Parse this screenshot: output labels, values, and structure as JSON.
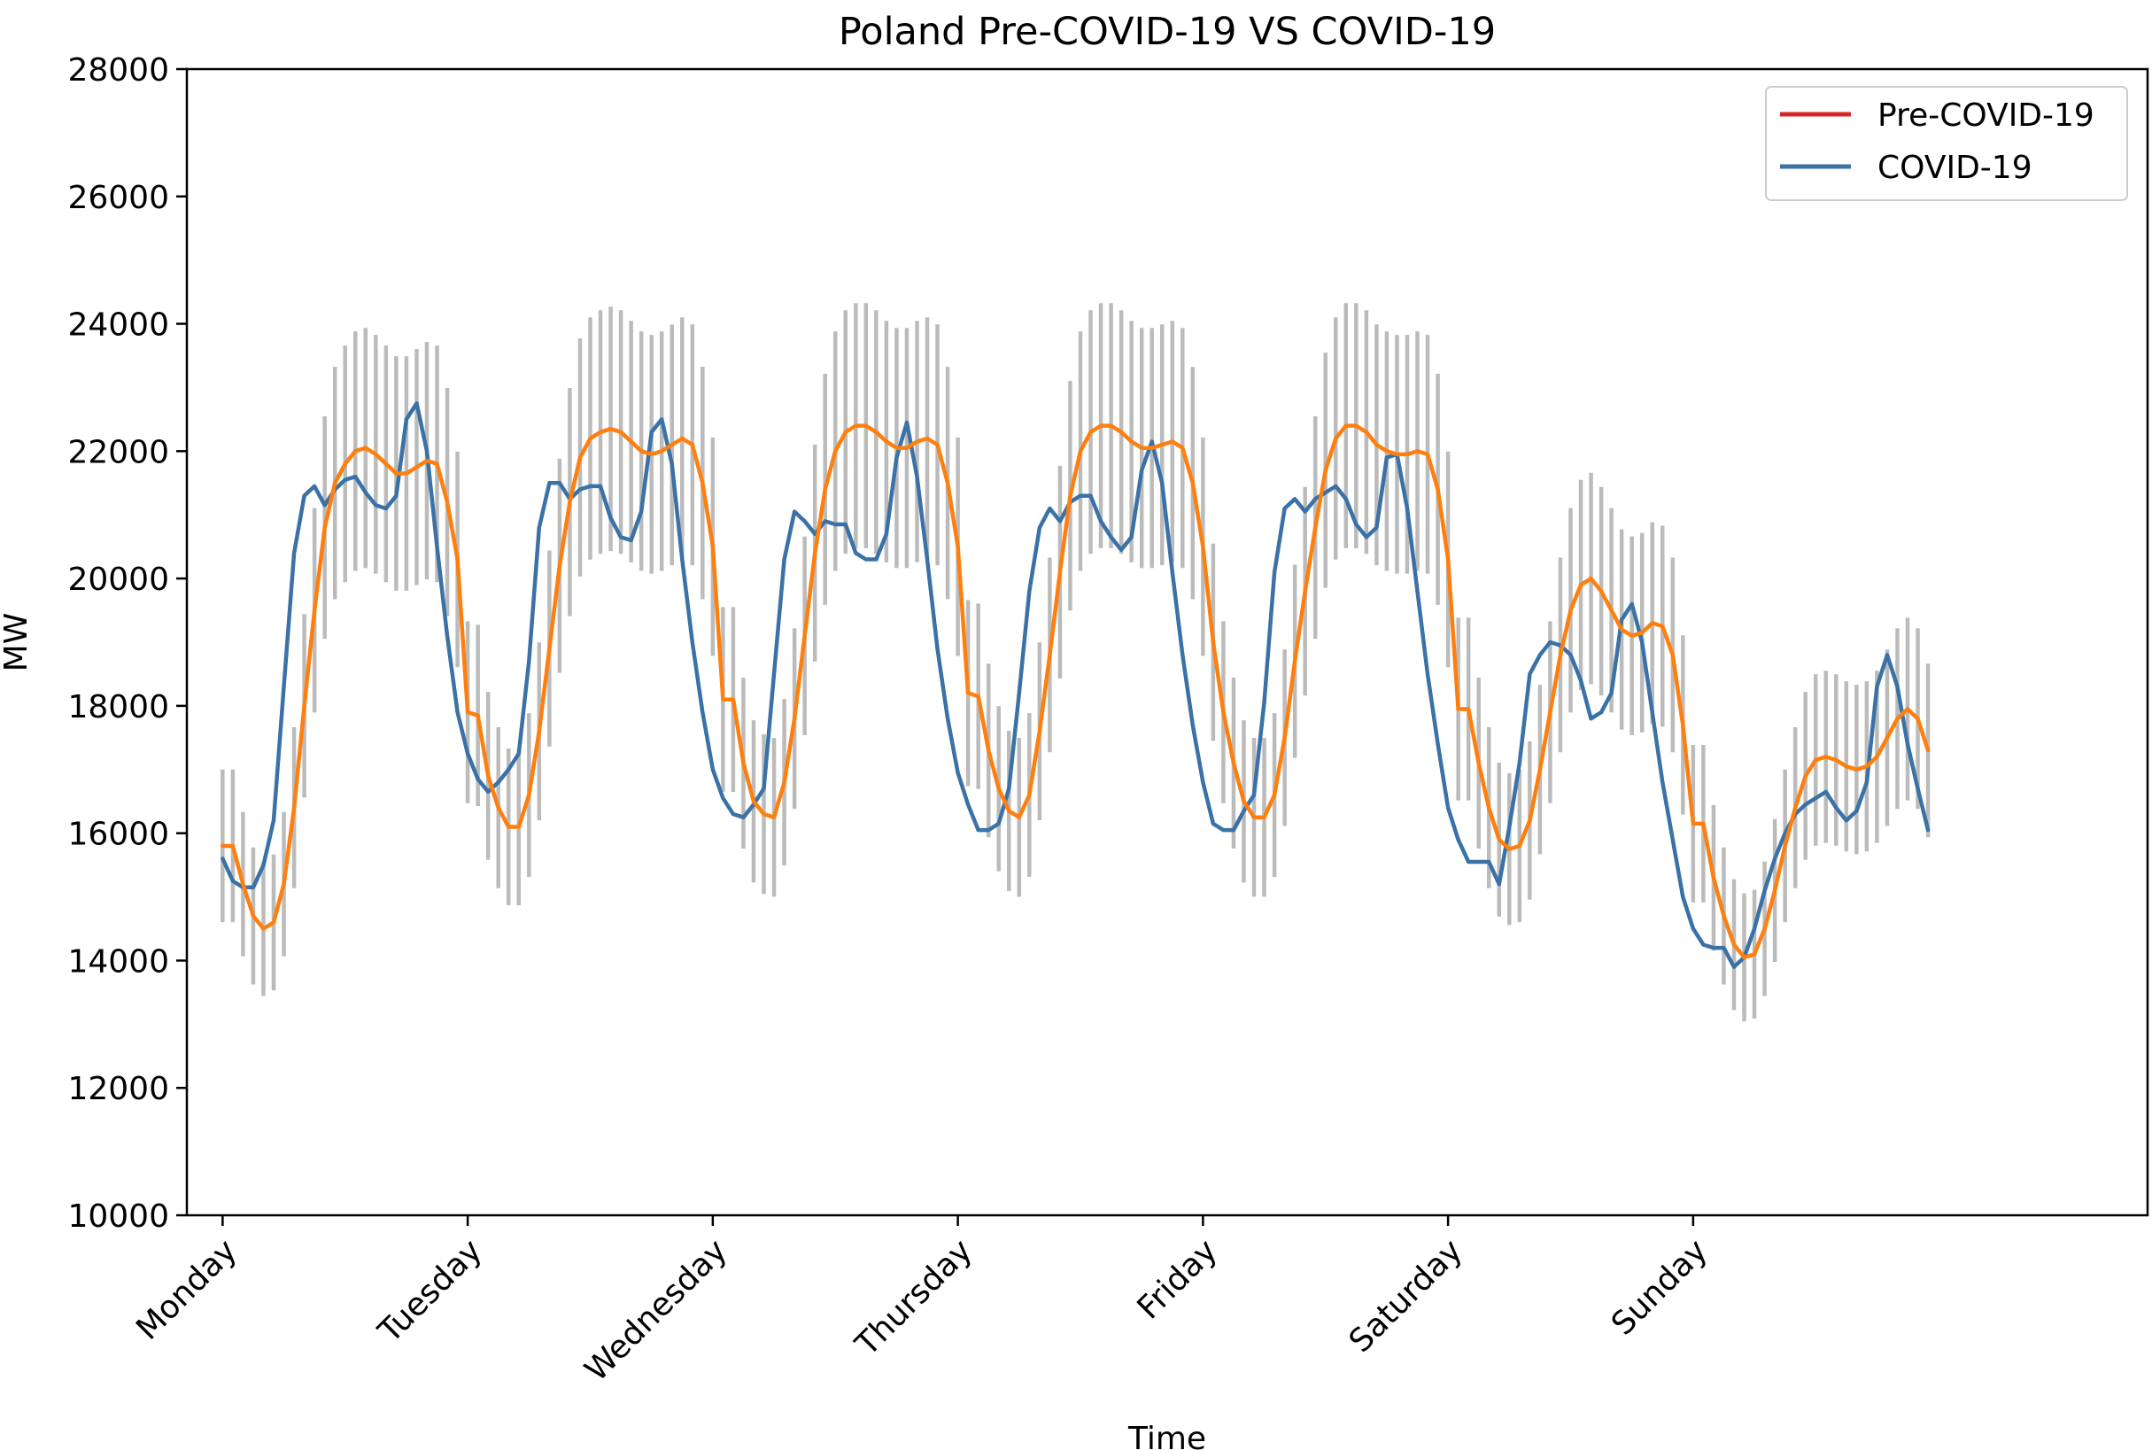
{
  "chart_data": {
    "type": "line",
    "title": "Poland Pre-COVID-19 VS COVID-19",
    "xlabel": "Time",
    "ylabel": "MW",
    "ylim": [
      10000,
      28000
    ],
    "yticks": [
      10000,
      12000,
      14000,
      16000,
      18000,
      20000,
      22000,
      24000,
      26000,
      28000
    ],
    "x_unit": "hours since Monday 00:00",
    "xlim": [
      -3.5,
      188.5
    ],
    "xticks": [
      {
        "label": "Monday",
        "x": 0
      },
      {
        "label": "Tuesday",
        "x": 24
      },
      {
        "label": "Wednesday",
        "x": 48
      },
      {
        "label": "Thursday",
        "x": 72
      },
      {
        "label": "Friday",
        "x": 96
      },
      {
        "label": "Saturday",
        "x": 120
      },
      {
        "label": "Sunday",
        "x": 144
      }
    ],
    "legend_position": "top-right",
    "series": [
      {
        "name": "Pre-COVID-19",
        "legend_color": "#d62728",
        "line_color": "#ff7f0e",
        "x": [
          0,
          1,
          2,
          3,
          4,
          5,
          6,
          7,
          8,
          9,
          10,
          11,
          12,
          13,
          14,
          15,
          16,
          17,
          18,
          19,
          20,
          21,
          22,
          23,
          24,
          25,
          26,
          27,
          28,
          29,
          30,
          31,
          32,
          33,
          34,
          35,
          36,
          37,
          38,
          39,
          40,
          41,
          42,
          43,
          44,
          45,
          46,
          47,
          48,
          49,
          50,
          51,
          52,
          53,
          54,
          55,
          56,
          57,
          58,
          59,
          60,
          61,
          62,
          63,
          64,
          65,
          66,
          67,
          68,
          69,
          70,
          71,
          72,
          73,
          74,
          75,
          76,
          77,
          78,
          79,
          80,
          81,
          82,
          83,
          84,
          85,
          86,
          87,
          88,
          89,
          90,
          91,
          92,
          93,
          94,
          95,
          96,
          97,
          98,
          99,
          100,
          101,
          102,
          103,
          104,
          105,
          106,
          107,
          108,
          109,
          110,
          111,
          112,
          113,
          114,
          115,
          116,
          117,
          118,
          119,
          120,
          121,
          122,
          123,
          124,
          125,
          126,
          127,
          128,
          129,
          130,
          131,
          132,
          133,
          134,
          135,
          136,
          137,
          138,
          139,
          140,
          141,
          142,
          143,
          144,
          145,
          146,
          147,
          148,
          149,
          150,
          151,
          152,
          153,
          154,
          155,
          156,
          157,
          158,
          159,
          160,
          161,
          162,
          163,
          164,
          165,
          166,
          167
        ],
        "values": [
          15800,
          15800,
          15200,
          14700,
          14500,
          14600,
          15200,
          16400,
          18000,
          19500,
          20800,
          21500,
          21800,
          22000,
          22050,
          21950,
          21800,
          21650,
          21650,
          21750,
          21850,
          21800,
          21200,
          20300,
          17900,
          17850,
          16900,
          16400,
          16100,
          16100,
          16600,
          17600,
          18900,
          20200,
          21200,
          21900,
          22200,
          22300,
          22350,
          22300,
          22150,
          22000,
          21950,
          22000,
          22100,
          22200,
          22100,
          21500,
          20500,
          18100,
          18100,
          17100,
          16500,
          16300,
          16250,
          16800,
          17800,
          19100,
          20400,
          21400,
          22000,
          22300,
          22400,
          22400,
          22300,
          22150,
          22050,
          22050,
          22150,
          22200,
          22100,
          21500,
          20500,
          18200,
          18150,
          17300,
          16700,
          16350,
          16250,
          16600,
          17600,
          18800,
          20100,
          21300,
          22000,
          22300,
          22400,
          22400,
          22300,
          22150,
          22050,
          22050,
          22100,
          22150,
          22050,
          21500,
          20500,
          19000,
          17900,
          17100,
          16500,
          16250,
          16250,
          16600,
          17500,
          18700,
          19800,
          20800,
          21700,
          22200,
          22400,
          22400,
          22300,
          22100,
          22000,
          21950,
          21950,
          22000,
          21950,
          21400,
          20300,
          17950,
          17950,
          17100,
          16400,
          15900,
          15750,
          15800,
          16200,
          17000,
          17900,
          18800,
          19500,
          19900,
          20000,
          19800,
          19500,
          19200,
          19100,
          19150,
          19300,
          19250,
          18800,
          17700,
          16150,
          16150,
          15300,
          14700,
          14250,
          14050,
          14100,
          14500,
          15100,
          15800,
          16400,
          16900,
          17150,
          17200,
          17150,
          17050,
          17000,
          17050,
          17200,
          17500,
          17800,
          17950,
          17800,
          17300
        ]
      },
      {
        "name": "COVID-19",
        "legend_color": "#3a72a7",
        "line_color": "#3a72a7",
        "x": [
          0,
          1,
          2,
          3,
          4,
          5,
          6,
          7,
          8,
          9,
          10,
          11,
          12,
          13,
          14,
          15,
          16,
          17,
          18,
          19,
          20,
          21,
          22,
          23,
          24,
          25,
          26,
          27,
          28,
          29,
          30,
          31,
          32,
          33,
          34,
          35,
          36,
          37,
          38,
          39,
          40,
          41,
          42,
          43,
          44,
          45,
          46,
          47,
          48,
          49,
          50,
          51,
          52,
          53,
          54,
          55,
          56,
          57,
          58,
          59,
          60,
          61,
          62,
          63,
          64,
          65,
          66,
          67,
          68,
          69,
          70,
          71,
          72,
          73,
          74,
          75,
          76,
          77,
          78,
          79,
          80,
          81,
          82,
          83,
          84,
          85,
          86,
          87,
          88,
          89,
          90,
          91,
          92,
          93,
          94,
          95,
          96,
          97,
          98,
          99,
          100,
          101,
          102,
          103,
          104,
          105,
          106,
          107,
          108,
          109,
          110,
          111,
          112,
          113,
          114,
          115,
          116,
          117,
          118,
          119,
          120,
          121,
          122,
          123,
          124,
          125,
          126,
          127,
          128,
          129,
          130,
          131,
          132,
          133,
          134,
          135,
          136,
          137,
          138,
          139,
          140,
          141,
          142,
          143,
          144,
          145,
          146,
          147,
          148,
          149,
          150,
          151,
          152,
          153,
          154,
          155,
          156,
          157,
          158,
          159,
          160,
          161,
          162,
          163,
          164,
          165,
          166,
          167
        ],
        "values": [
          15600,
          15250,
          15150,
          15150,
          15500,
          16200,
          18300,
          20400,
          21300,
          21450,
          21150,
          21400,
          21550,
          21600,
          21350,
          21150,
          21100,
          21300,
          22500,
          22750,
          22000,
          20500,
          19100,
          17900,
          17250,
          16850,
          16650,
          16800,
          17000,
          17250,
          18700,
          20800,
          21500,
          21500,
          21250,
          21400,
          21450,
          21450,
          20950,
          20650,
          20600,
          21050,
          22300,
          22500,
          21800,
          20300,
          19000,
          17900,
          17000,
          16550,
          16300,
          16250,
          16450,
          16700,
          18500,
          20300,
          21050,
          20900,
          20700,
          20900,
          20850,
          20850,
          20400,
          20300,
          20300,
          20700,
          21900,
          22450,
          21600,
          20300,
          18900,
          17800,
          16950,
          16450,
          16050,
          16050,
          16150,
          16700,
          18200,
          19800,
          20800,
          21100,
          20900,
          21200,
          21300,
          21300,
          20900,
          20650,
          20450,
          20650,
          21700,
          22150,
          21500,
          20100,
          18800,
          17700,
          16800,
          16150,
          16050,
          16050,
          16350,
          16600,
          18050,
          20100,
          21100,
          21250,
          21050,
          21250,
          21350,
          21450,
          21250,
          20850,
          20650,
          20800,
          21900,
          21950,
          21100,
          19800,
          18500,
          17400,
          16400,
          15900,
          15550,
          15550,
          15550,
          15200,
          16100,
          17100,
          18500,
          18800,
          19000,
          18950,
          18800,
          18400,
          17800,
          17900,
          18200,
          19350,
          19600,
          19000,
          17900,
          16800,
          15900,
          15000,
          14500,
          14250,
          14200,
          14200,
          13900,
          14050,
          14500,
          15100,
          15600,
          16000,
          16300,
          16450,
          16550,
          16650,
          16400,
          16200,
          16350,
          16800,
          18300,
          18800,
          18300,
          17400,
          16700,
          16050
        ]
      }
    ],
    "error_bars": {
      "color": "#bbbbbb",
      "centers": "Pre-COVID-19 values",
      "half_width_min": 1000,
      "half_width_max": 2000
    }
  }
}
